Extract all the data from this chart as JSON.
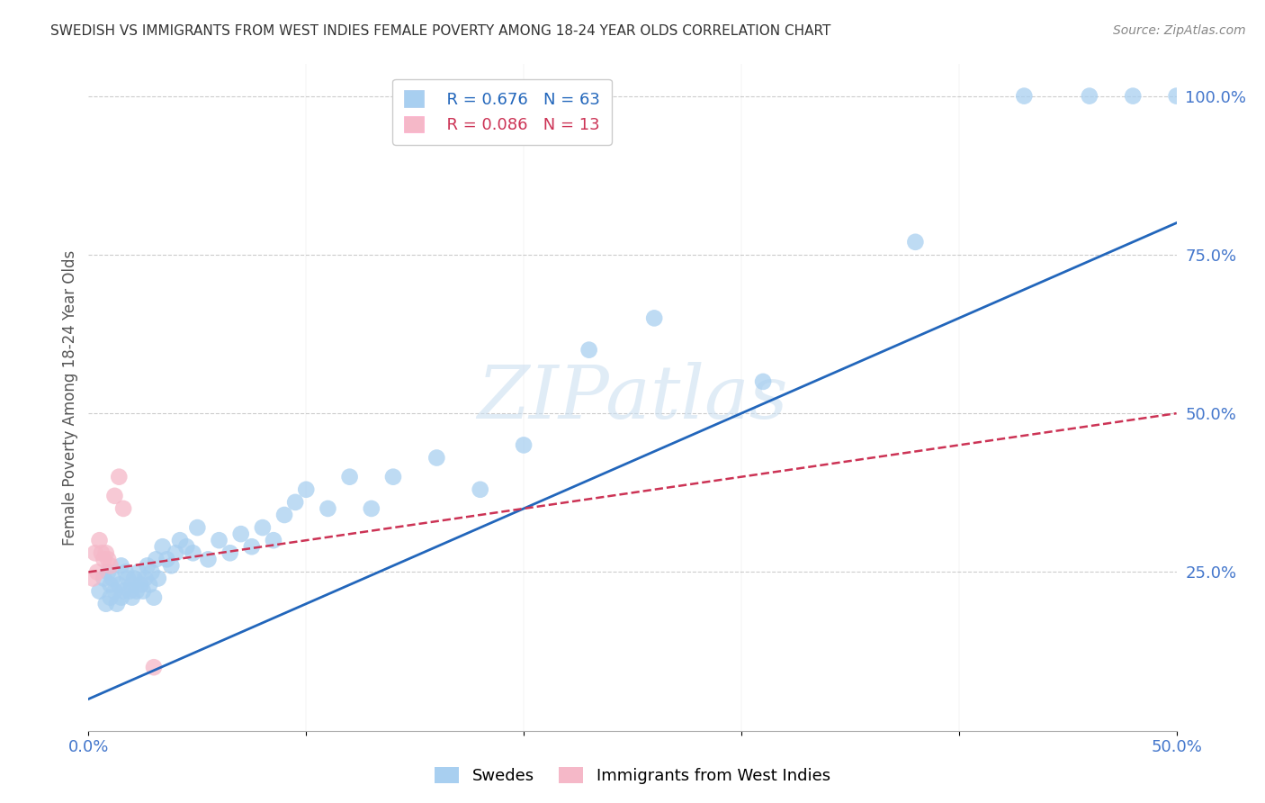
{
  "title": "SWEDISH VS IMMIGRANTS FROM WEST INDIES FEMALE POVERTY AMONG 18-24 YEAR OLDS CORRELATION CHART",
  "source": "Source: ZipAtlas.com",
  "ylabel": "Female Poverty Among 18-24 Year Olds",
  "xlim": [
    0.0,
    0.5
  ],
  "ylim": [
    0.0,
    1.05
  ],
  "xticks": [
    0.0,
    0.1,
    0.2,
    0.3,
    0.4,
    0.5
  ],
  "xtick_labels": [
    "0.0%",
    "",
    "",
    "",
    "",
    "50.0%"
  ],
  "ytick_labels_right": [
    "100.0%",
    "75.0%",
    "50.0%",
    "25.0%"
  ],
  "ytick_positions_right": [
    1.0,
    0.75,
    0.5,
    0.25
  ],
  "blue_R": 0.676,
  "blue_N": 63,
  "pink_R": 0.086,
  "pink_N": 13,
  "blue_color": "#a8cff0",
  "pink_color": "#f5b8c8",
  "blue_line_color": "#2266bb",
  "pink_line_color": "#cc3355",
  "legend_label_blue": "Swedes",
  "legend_label_pink": "Immigrants from West Indies",
  "watermark_text": "ZIPatlas",
  "blue_scatter_x": [
    0.005,
    0.007,
    0.008,
    0.009,
    0.01,
    0.01,
    0.011,
    0.012,
    0.013,
    0.014,
    0.015,
    0.015,
    0.016,
    0.017,
    0.018,
    0.019,
    0.02,
    0.02,
    0.021,
    0.022,
    0.023,
    0.024,
    0.025,
    0.026,
    0.027,
    0.028,
    0.029,
    0.03,
    0.031,
    0.032,
    0.034,
    0.036,
    0.038,
    0.04,
    0.042,
    0.045,
    0.048,
    0.05,
    0.055,
    0.06,
    0.065,
    0.07,
    0.075,
    0.08,
    0.085,
    0.09,
    0.095,
    0.1,
    0.11,
    0.12,
    0.13,
    0.14,
    0.16,
    0.18,
    0.2,
    0.23,
    0.26,
    0.31,
    0.38,
    0.43,
    0.46,
    0.48,
    0.5
  ],
  "blue_scatter_y": [
    0.22,
    0.24,
    0.2,
    0.25,
    0.23,
    0.21,
    0.24,
    0.22,
    0.2,
    0.23,
    0.21,
    0.26,
    0.22,
    0.25,
    0.24,
    0.22,
    0.21,
    0.23,
    0.24,
    0.22,
    0.25,
    0.23,
    0.22,
    0.24,
    0.26,
    0.23,
    0.25,
    0.21,
    0.27,
    0.24,
    0.29,
    0.27,
    0.26,
    0.28,
    0.3,
    0.29,
    0.28,
    0.32,
    0.27,
    0.3,
    0.28,
    0.31,
    0.29,
    0.32,
    0.3,
    0.34,
    0.36,
    0.38,
    0.35,
    0.4,
    0.35,
    0.4,
    0.43,
    0.38,
    0.45,
    0.6,
    0.65,
    0.55,
    0.77,
    1.0,
    1.0,
    1.0,
    1.0
  ],
  "pink_scatter_x": [
    0.002,
    0.003,
    0.004,
    0.005,
    0.006,
    0.007,
    0.008,
    0.009,
    0.01,
    0.012,
    0.014,
    0.016,
    0.03
  ],
  "pink_scatter_y": [
    0.24,
    0.28,
    0.25,
    0.3,
    0.28,
    0.27,
    0.28,
    0.27,
    0.26,
    0.37,
    0.4,
    0.35,
    0.1
  ],
  "blue_line_x0": 0.0,
  "blue_line_y0": 0.05,
  "blue_line_x1": 0.5,
  "blue_line_y1": 0.8,
  "pink_line_x0": 0.0,
  "pink_line_y0": 0.25,
  "pink_line_x1": 0.5,
  "pink_line_y1": 0.5,
  "grid_color": "#cccccc",
  "background_color": "#ffffff",
  "title_color": "#333333",
  "tick_label_color": "#4477cc"
}
